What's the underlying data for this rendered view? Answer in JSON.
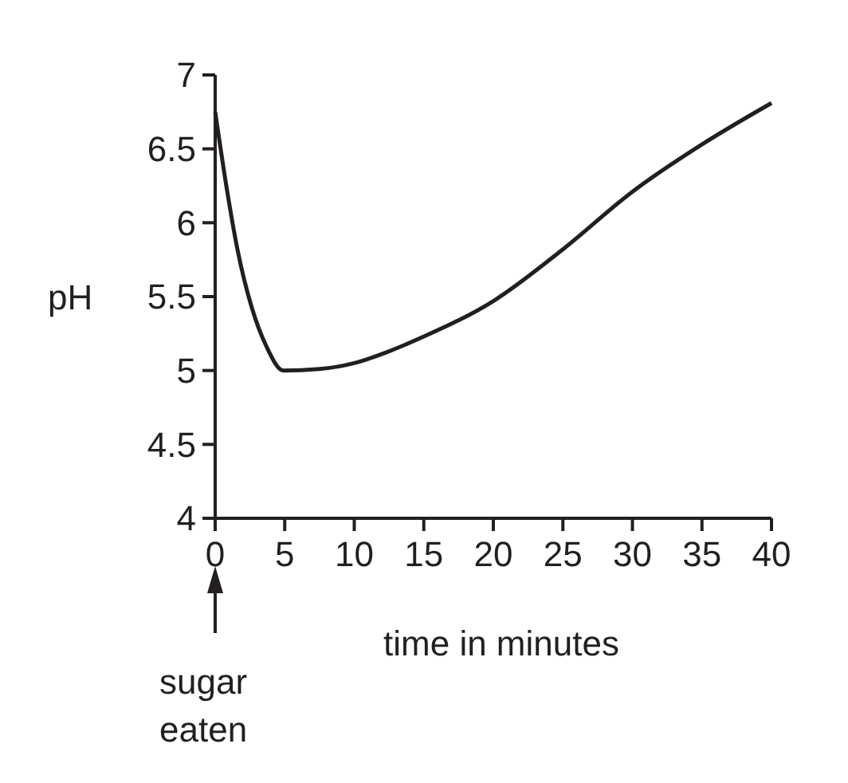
{
  "chart_data": {
    "type": "line",
    "xlabel": "time in minutes",
    "ylabel": "pH",
    "x": [
      0,
      0.8,
      1.6,
      2.65,
      3.7,
      4.9,
      7.5,
      10,
      12.5,
      15,
      20,
      25,
      30,
      35,
      40
    ],
    "series": [
      {
        "color": "#231f20",
        "values": [
          6.75,
          6.25,
          5.82,
          5.42,
          5.16,
          5.0,
          5.01,
          5.05,
          5.13,
          5.23,
          5.47,
          5.82,
          6.21,
          6.53,
          6.81
        ]
      }
    ],
    "xlim": [
      0,
      40
    ],
    "ylim": [
      4,
      7
    ],
    "xticks": [
      0,
      5,
      10,
      15,
      20,
      25,
      30,
      35,
      40
    ],
    "yticks": [
      4,
      4.5,
      5,
      5.5,
      6,
      6.5,
      7
    ],
    "grid": false,
    "marker": "none",
    "line_style": "solid",
    "annotations": [
      "sugar eaten"
    ]
  }
}
